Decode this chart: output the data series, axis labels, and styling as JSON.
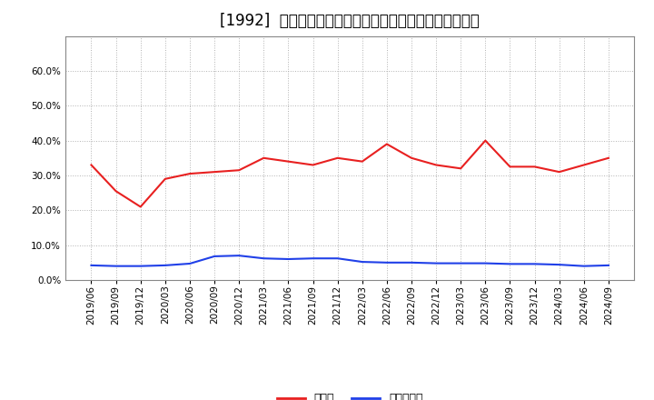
{
  "title": "[1992]  現預金、有利子負債の総資産に対する比率の推移",
  "dates": [
    "2019/06",
    "2019/09",
    "2019/12",
    "2020/03",
    "2020/06",
    "2020/09",
    "2020/12",
    "2021/03",
    "2021/06",
    "2021/09",
    "2021/12",
    "2022/03",
    "2022/06",
    "2022/09",
    "2022/12",
    "2023/03",
    "2023/06",
    "2023/09",
    "2023/12",
    "2024/03",
    "2024/06",
    "2024/09"
  ],
  "cash": [
    0.33,
    0.255,
    0.21,
    0.29,
    0.305,
    0.31,
    0.315,
    0.35,
    0.34,
    0.33,
    0.35,
    0.34,
    0.39,
    0.35,
    0.33,
    0.32,
    0.4,
    0.325,
    0.325,
    0.31,
    0.33,
    0.35
  ],
  "interest_debt": [
    0.042,
    0.04,
    0.04,
    0.042,
    0.047,
    0.068,
    0.07,
    0.062,
    0.06,
    0.062,
    0.062,
    0.052,
    0.05,
    0.05,
    0.048,
    0.048,
    0.048,
    0.046,
    0.046,
    0.044,
    0.04,
    0.042
  ],
  "cash_color": "#e82020",
  "debt_color": "#2040e8",
  "background_color": "#ffffff",
  "plot_bg_color": "#ffffff",
  "grid_color": "#aaaaaa",
  "ylim": [
    0.0,
    0.7
  ],
  "yticks": [
    0.0,
    0.1,
    0.2,
    0.3,
    0.4,
    0.5,
    0.6
  ],
  "legend_cash": "現預金",
  "legend_debt": "有利子負債",
  "title_fontsize": 12,
  "axis_fontsize": 7.5,
  "legend_fontsize": 9
}
